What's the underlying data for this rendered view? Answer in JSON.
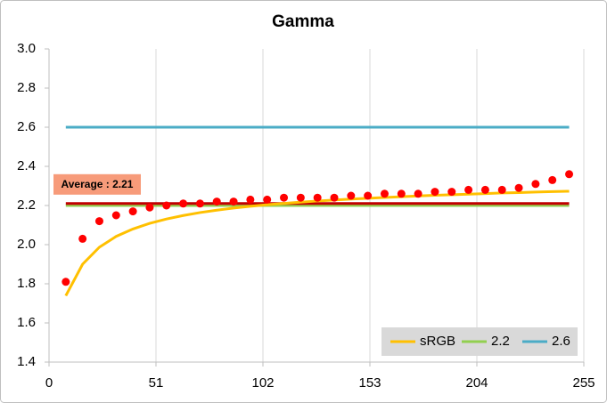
{
  "chart_data": {
    "type": "line",
    "title": "Gamma",
    "x": [
      8,
      16,
      24,
      32,
      40,
      48,
      56,
      64,
      72,
      80,
      88,
      96,
      104,
      112,
      120,
      128,
      136,
      144,
      152,
      160,
      168,
      176,
      184,
      192,
      200,
      208,
      216,
      224,
      232,
      240,
      248
    ],
    "xlim": [
      0,
      255
    ],
    "xticks": [
      0,
      51,
      102,
      153,
      204,
      255
    ],
    "ylim": [
      1.4,
      3.0
    ],
    "yticks": [
      1.4,
      1.6,
      1.8,
      {
        "value": 2,
        "label": "2.0"
      },
      2.2,
      2.4,
      2.6,
      2.8,
      {
        "value": 3,
        "label": "3.0"
      }
    ],
    "xgrid": true,
    "legend": "lower right",
    "series": [
      {
        "name": "sRGB",
        "color": "#ffc000",
        "values": [
          1.739,
          1.9,
          1.987,
          2.042,
          2.08,
          2.109,
          2.131,
          2.149,
          2.164,
          2.176,
          2.187,
          2.196,
          2.204,
          2.211,
          2.217,
          2.223,
          2.228,
          2.233,
          2.237,
          2.241,
          2.245,
          2.249,
          2.252,
          2.255,
          2.258,
          2.261,
          2.264,
          2.266,
          2.269,
          2.271,
          2.273
        ]
      },
      {
        "name": "2.2",
        "color": "#92d050",
        "values": [
          2.2,
          2.2,
          2.2,
          2.2,
          2.2,
          2.2,
          2.2,
          2.2,
          2.2,
          2.2,
          2.2,
          2.2,
          2.2,
          2.2,
          2.2,
          2.2,
          2.2,
          2.2,
          2.2,
          2.2,
          2.2,
          2.2,
          2.2,
          2.2,
          2.2,
          2.2,
          2.2,
          2.2,
          2.2,
          2.2,
          2.2
        ]
      },
      {
        "name": "2.6",
        "color": "#4bacc6",
        "values": [
          2.6,
          2.6,
          2.6,
          2.6,
          2.6,
          2.6,
          2.6,
          2.6,
          2.6,
          2.6,
          2.6,
          2.6,
          2.6,
          2.6,
          2.6,
          2.6,
          2.6,
          2.6,
          2.6,
          2.6,
          2.6,
          2.6,
          2.6,
          2.6,
          2.6,
          2.6,
          2.6,
          2.6,
          2.6,
          2.6,
          2.6
        ]
      }
    ],
    "measured": {
      "color": "#ff0000",
      "values": [
        1.81,
        2.03,
        2.12,
        2.15,
        2.17,
        2.19,
        2.2,
        2.21,
        2.21,
        2.22,
        2.22,
        2.23,
        2.23,
        2.24,
        2.24,
        2.24,
        2.24,
        2.25,
        2.25,
        2.26,
        2.26,
        2.26,
        2.27,
        2.27,
        2.28,
        2.28,
        2.28,
        2.29,
        2.31,
        2.33,
        2.36
      ]
    },
    "average": {
      "value": 2.21,
      "color": "#c00000"
    },
    "annotation": "Average : 2.21"
  }
}
